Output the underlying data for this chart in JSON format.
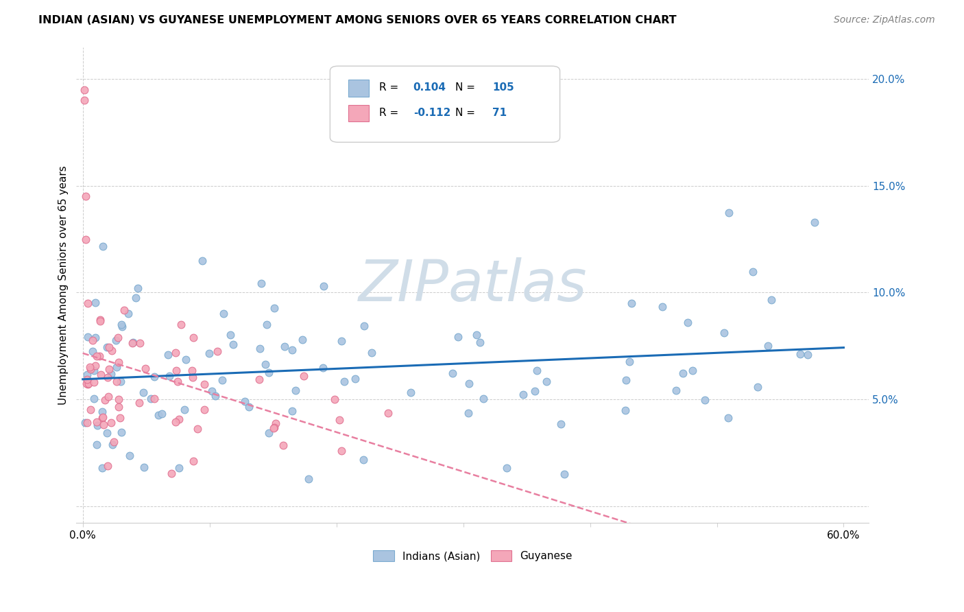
{
  "title": "INDIAN (ASIAN) VS GUYANESE UNEMPLOYMENT AMONG SENIORS OVER 65 YEARS CORRELATION CHART",
  "source": "Source: ZipAtlas.com",
  "ylabel": "Unemployment Among Seniors over 65 years",
  "xlim": [
    -0.005,
    0.62
  ],
  "ylim": [
    -0.008,
    0.215
  ],
  "xticks": [
    0.0,
    0.1,
    0.2,
    0.3,
    0.4,
    0.5,
    0.6
  ],
  "xtick_labels": [
    "0.0%",
    "",
    "",
    "",
    "",
    "",
    "60.0%"
  ],
  "yticks_right": [
    0.0,
    0.05,
    0.1,
    0.15,
    0.2
  ],
  "ytick_labels_right": [
    "",
    "5.0%",
    "10.0%",
    "15.0%",
    "20.0%"
  ],
  "r_indian": 0.104,
  "n_indian": 105,
  "r_guyanese": -0.112,
  "n_guyanese": 71,
  "indian_fill_color": "#aac4e0",
  "indian_edge_color": "#7aaacf",
  "guyanese_fill_color": "#f4a7b9",
  "guyanese_edge_color": "#e07090",
  "indian_line_color": "#1a6bb5",
  "guyanese_line_color": "#e87fa0",
  "axis_label_color": "#1a6bb5",
  "watermark_text": "ZIPatlas",
  "watermark_color": "#d0dde8",
  "legend_label_indian": "Indians (Asian)",
  "legend_label_guyanese": "Guyanese",
  "title_fontsize": 11.5,
  "source_fontsize": 10,
  "axis_fontsize": 11,
  "legend_fontsize": 11
}
